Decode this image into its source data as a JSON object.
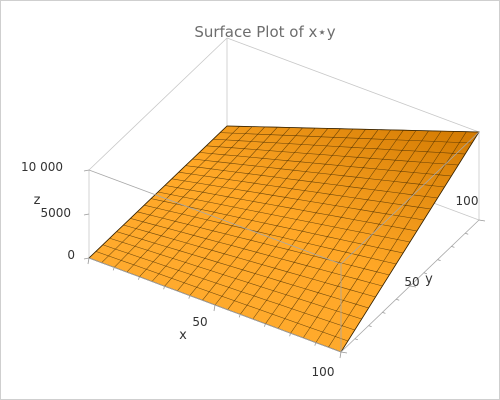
{
  "chart_data": {
    "type": "surface3d",
    "title": "Surface Plot of x⋆y",
    "function": "x*y",
    "xlabel": "x",
    "ylabel": "y",
    "zlabel": "z",
    "x_range": [
      0,
      100
    ],
    "y_range": [
      0,
      100
    ],
    "z_range": [
      0,
      10000
    ],
    "x_ticks": [
      {
        "value": 50,
        "label": "50"
      },
      {
        "value": 100,
        "label": "100"
      }
    ],
    "y_ticks": [
      {
        "value": 50,
        "label": "50"
      },
      {
        "value": 100,
        "label": "100"
      }
    ],
    "z_ticks": [
      {
        "value": 0,
        "label": "0"
      },
      {
        "value": 5000,
        "label": "5000"
      },
      {
        "value": 10000,
        "label": "10 000"
      }
    ],
    "mesh_divisions": 20,
    "corners": [
      {
        "x": 0,
        "y": 0,
        "z": 0
      },
      {
        "x": 100,
        "y": 0,
        "z": 0
      },
      {
        "x": 0,
        "y": 100,
        "z": 0
      },
      {
        "x": 100,
        "y": 100,
        "z": 10000
      }
    ],
    "colors": {
      "surface_light": "#ffad33",
      "surface_mid": "#ffa726",
      "surface_dark": "#d07800",
      "mesh": "#3b2500",
      "box": "#c8c8c8",
      "title": "#6d6d6d"
    }
  }
}
